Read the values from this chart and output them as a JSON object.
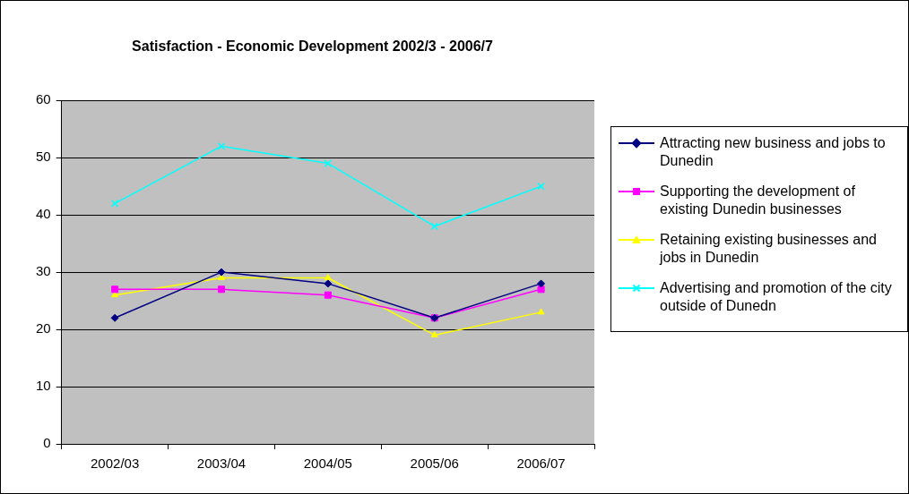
{
  "chart_data": {
    "type": "line",
    "title": "Satisfaction - Economic Development 2002/3 - 2006/7",
    "categories": [
      "2002/03",
      "2003/04",
      "2004/05",
      "2005/06",
      "2006/07"
    ],
    "series": [
      {
        "name": "Attracting new business and jobs to Dunedin",
        "color": "#000080",
        "marker": "diamond",
        "values": [
          22,
          30,
          28,
          22,
          28
        ]
      },
      {
        "name": "Supporting the development of existing Dunedin businesses",
        "color": "#ff00ff",
        "marker": "square",
        "values": [
          27,
          27,
          26,
          22,
          27
        ]
      },
      {
        "name": "Retaining existing businesses and jobs in Dunedin",
        "color": "#ffff00",
        "marker": "triangle",
        "values": [
          26,
          29,
          29,
          19,
          23
        ]
      },
      {
        "name": "Advertising and promotion of the city outside of Dunedn",
        "color": "#00ffff",
        "marker": "cross",
        "values": [
          42,
          52,
          49,
          38,
          45
        ]
      }
    ],
    "ylim": [
      0,
      60
    ],
    "yticks": [
      0,
      10,
      20,
      30,
      40,
      50,
      60
    ],
    "grid": "y",
    "legend": "right",
    "line_style": "solid"
  }
}
